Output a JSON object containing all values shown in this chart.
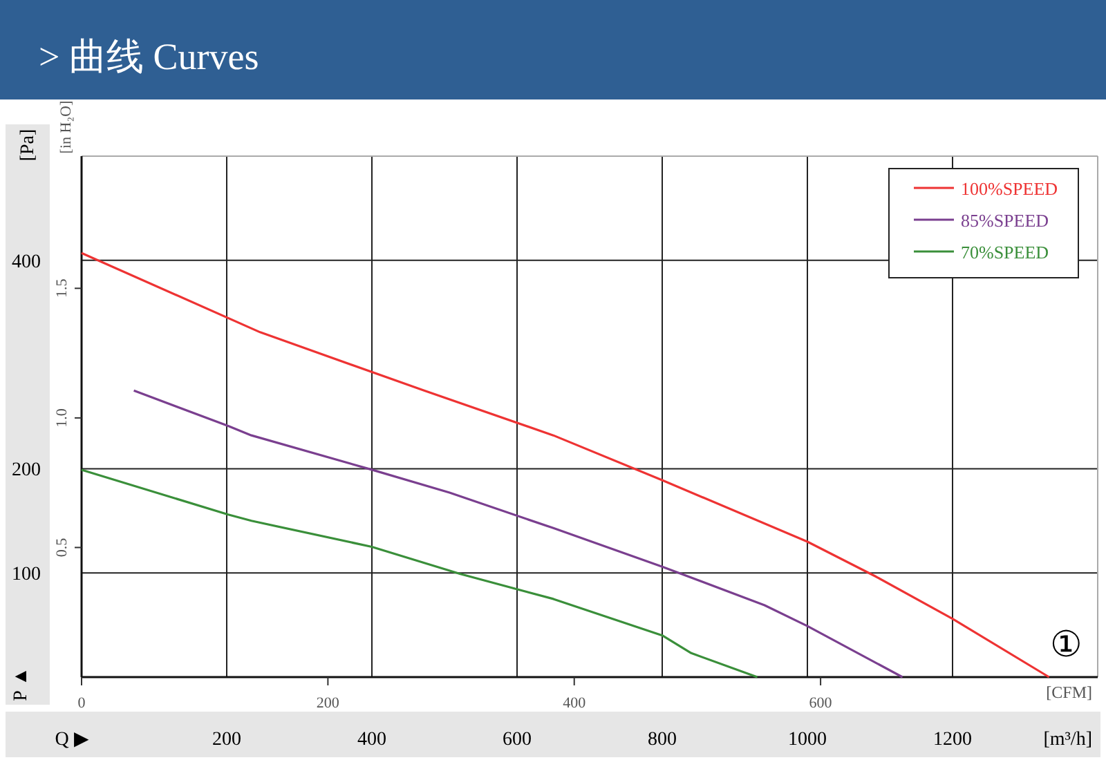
{
  "chart_data": {
    "type": "line",
    "title": "> 曲线 Curves",
    "xlabel": "[m³/h]",
    "x2label": "[CFM]",
    "ylabel": "[Pa]",
    "y2label": "[in H₂O]",
    "xlim": [
      0,
      1400
    ],
    "xticks": [
      200,
      400,
      600,
      800,
      1000,
      1200
    ],
    "x2lim": [
      0,
      825
    ],
    "x2ticks": [
      0,
      200,
      400,
      600
    ],
    "ylim": [
      0,
      500
    ],
    "yticks": [
      100,
      200,
      400
    ],
    "y2lim": [
      0,
      2.01
    ],
    "y2ticks": [
      0.5,
      {
        "value": 1,
        "label": "1.0"
      },
      1.5
    ],
    "grid": true,
    "legend": "top right",
    "annotations": [
      "P ▲",
      "Q ▶",
      "①"
    ],
    "series": [
      {
        "name": "100%SPEED",
        "color": "#ee3333",
        "x": [
          0,
          246,
          472,
          650,
          800,
          1000,
          1093,
          1200,
          1333
        ],
        "values": [
          407,
          331,
          275,
          232,
          189,
          130,
          97,
          56,
          0
        ]
      },
      {
        "name": "85%SPEED",
        "color": "#7a3f8f",
        "x": [
          72,
          202,
          234,
          400,
          507,
          650,
          800,
          941,
          1000,
          1131
        ],
        "values": [
          275,
          241,
          232,
          199,
          177,
          143,
          106,
          69,
          49,
          0
        ]
      },
      {
        "name": "70%SPEED",
        "color": "#3a8f3a",
        "x": [
          0,
          202,
          234,
          400,
          522,
          650,
          800,
          840,
          931
        ],
        "values": [
          199,
          156,
          150,
          125,
          99,
          75,
          40,
          23,
          0
        ]
      }
    ]
  }
}
